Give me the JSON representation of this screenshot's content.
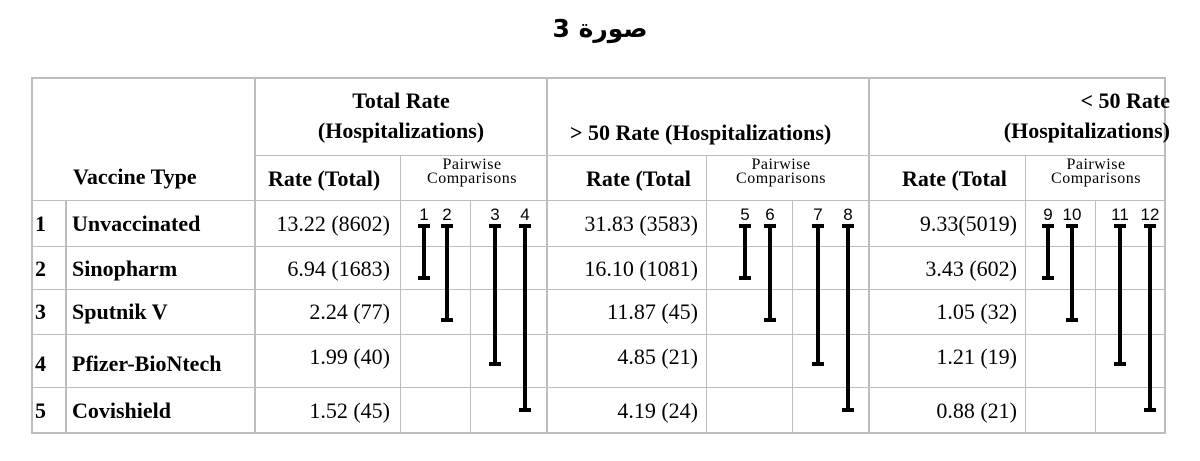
{
  "title": "صورة 3",
  "headers": {
    "vaccine_type": "Vaccine Type",
    "groups": [
      {
        "label": "Total Rate (Hospitalizations)",
        "rate_col": "Rate (Total)",
        "pairwise": "Pairwise Comparisons"
      },
      {
        "label": "> 50 Rate (Hospitalizations)",
        "rate_col": "Rate (Total",
        "pairwise": "Pairwise Comparisons"
      },
      {
        "label": "< 50 Rate (Hospitalizations)",
        "rate_col": "Rate (Total",
        "pairwise": "Pairwise Comparisons"
      }
    ]
  },
  "rows": [
    {
      "num": "1",
      "name": "Unvaccinated",
      "rates": [
        "13.22 (8602)",
        "31.83 (3583)",
        "9.33(5019)"
      ]
    },
    {
      "num": "2",
      "name": "Sinopharm",
      "rates": [
        "6.94 (1683)",
        "16.10 (1081)",
        "3.43 (602)"
      ]
    },
    {
      "num": "3",
      "name": "Sputnik V",
      "rates": [
        "2.24 (77)",
        "11.87 (45)",
        "1.05 (32)"
      ]
    },
    {
      "num": "4",
      "name": "Pfizer-BioNtech",
      "rates": [
        "1.99 (40)",
        "4.85 (21)",
        "1.21 (19)"
      ]
    },
    {
      "num": "5",
      "name": "Covishield",
      "rates": [
        "1.52 (45)",
        "4.19 (24)",
        "0.88 (21)"
      ]
    }
  ],
  "comparisons": [
    {
      "groups": [
        "1",
        "2",
        "3",
        "4"
      ],
      "spans": [
        [
          1,
          2
        ],
        [
          1,
          3
        ],
        [
          1,
          4
        ],
        [
          1,
          5
        ]
      ]
    },
    {
      "groups": [
        "5",
        "6",
        "7",
        "8"
      ],
      "spans": [
        [
          1,
          2
        ],
        [
          1,
          3
        ],
        [
          1,
          4
        ],
        [
          1,
          5
        ]
      ]
    },
    {
      "groups": [
        "9",
        "10",
        "11",
        "12"
      ],
      "spans": [
        [
          1,
          2
        ],
        [
          1,
          3
        ],
        [
          1,
          4
        ],
        [
          1,
          5
        ]
      ]
    }
  ]
}
